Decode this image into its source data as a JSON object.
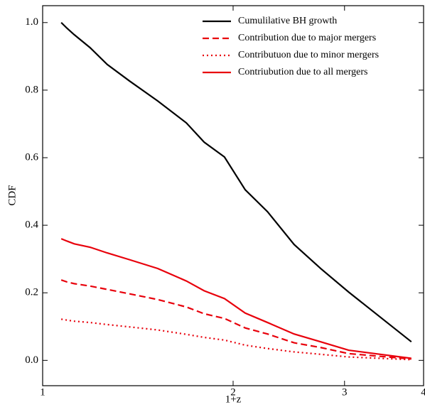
{
  "chart_data": {
    "type": "line",
    "xlabel": "1+z",
    "ylabel": "CDF",
    "xscale": "log",
    "xlim": [
      1,
      4
    ],
    "xticks": [
      1,
      2,
      3,
      4
    ],
    "ylim": [
      -0.075,
      1.05
    ],
    "yticks": [
      {
        "value": 0,
        "label": "0.0"
      },
      {
        "value": 0.2,
        "label": "0.2"
      },
      {
        "value": 0.4,
        "label": "0.4"
      },
      {
        "value": 0.6,
        "label": "0.6"
      },
      {
        "value": 0.8,
        "label": "0.8"
      },
      {
        "value": 1,
        "label": "1.0"
      }
    ],
    "legend": "upper right",
    "x": [
      1.07,
      1.093,
      1.122,
      1.188,
      1.265,
      1.372,
      1.52,
      1.687,
      1.8,
      1.938,
      2.09,
      2.267,
      2.497,
      2.75,
      3.046,
      3.826
    ],
    "series": [
      {
        "name": "Cumulilative BH growth",
        "color": "#000000",
        "dash": "solid",
        "values": [
          1.0,
          0.983,
          0.964,
          0.926,
          0.876,
          0.827,
          0.768,
          0.703,
          0.646,
          0.602,
          0.505,
          0.44,
          0.343,
          0.272,
          0.202,
          0.055
        ]
      },
      {
        "name": "Contribution due to major mergers",
        "color": "#e8000b",
        "dash": "dashed",
        "values": [
          0.238,
          0.232,
          0.227,
          0.22,
          0.21,
          0.197,
          0.18,
          0.158,
          0.138,
          0.124,
          0.096,
          0.078,
          0.052,
          0.038,
          0.02,
          0.004
        ]
      },
      {
        "name": "Contributuon due to minor mergers",
        "color": "#e8000b",
        "dash": "dotted",
        "values": [
          0.122,
          0.119,
          0.116,
          0.112,
          0.106,
          0.099,
          0.09,
          0.077,
          0.068,
          0.06,
          0.045,
          0.035,
          0.025,
          0.018,
          0.01,
          0.002
        ]
      },
      {
        "name": "Contriubution due to all mergers",
        "color": "#e8000b",
        "dash": "solid",
        "values": [
          0.36,
          0.353,
          0.345,
          0.335,
          0.318,
          0.298,
          0.272,
          0.235,
          0.206,
          0.183,
          0.14,
          0.112,
          0.078,
          0.055,
          0.03,
          0.006
        ]
      }
    ]
  }
}
